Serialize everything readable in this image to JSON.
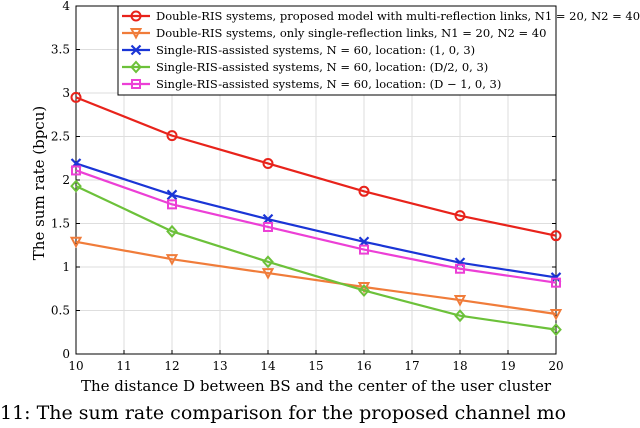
{
  "chart_data": {
    "type": "line",
    "title": "",
    "xlabel": "The distance D between BS and the center of the user cluster",
    "ylabel": "The sum rate (bpcu)",
    "xlim": [
      10,
      20
    ],
    "ylim": [
      0,
      4
    ],
    "xticks": [
      10,
      11,
      12,
      13,
      14,
      15,
      16,
      17,
      18,
      19,
      20
    ],
    "yticks": [
      0,
      0.5,
      1,
      1.5,
      2,
      2.5,
      3,
      3.5,
      4
    ],
    "grid": true,
    "legend_position": "top-right",
    "x": [
      10,
      12,
      14,
      16,
      18,
      20
    ],
    "series": [
      {
        "name": "Double-RIS systems, proposed model with multi-reflection links, N1 = 20, N2 = 40",
        "values": [
          2.95,
          2.51,
          2.19,
          1.87,
          1.59,
          1.36
        ],
        "color": "#e8231b",
        "marker": "circle"
      },
      {
        "name": "Double-RIS systems, only single-reflection links, N1 = 20, N2 = 40",
        "values": [
          1.29,
          1.09,
          0.93,
          0.77,
          0.62,
          0.46
        ],
        "color": "#f07c3a",
        "marker": "triangle-down"
      },
      {
        "name": "Single-RIS-assisted systems, N = 60, location: (1, 0, 3)",
        "values": [
          2.19,
          1.83,
          1.55,
          1.29,
          1.05,
          0.88
        ],
        "color": "#1a35d6",
        "marker": "x"
      },
      {
        "name": "Single-RIS-assisted systems, N = 60, location: (D/2, 0, 3)",
        "values": [
          1.93,
          1.41,
          1.06,
          0.73,
          0.44,
          0.28
        ],
        "color": "#6cc13a",
        "marker": "diamond"
      },
      {
        "name": "Single-RIS-assisted systems, N = 60, location: (D − 1, 0, 3)",
        "values": [
          2.11,
          1.72,
          1.46,
          1.2,
          0.98,
          0.82
        ],
        "color": "#ec3fd6",
        "marker": "square"
      }
    ]
  },
  "caption": "11: The sum rate comparison for the proposed channel mo"
}
